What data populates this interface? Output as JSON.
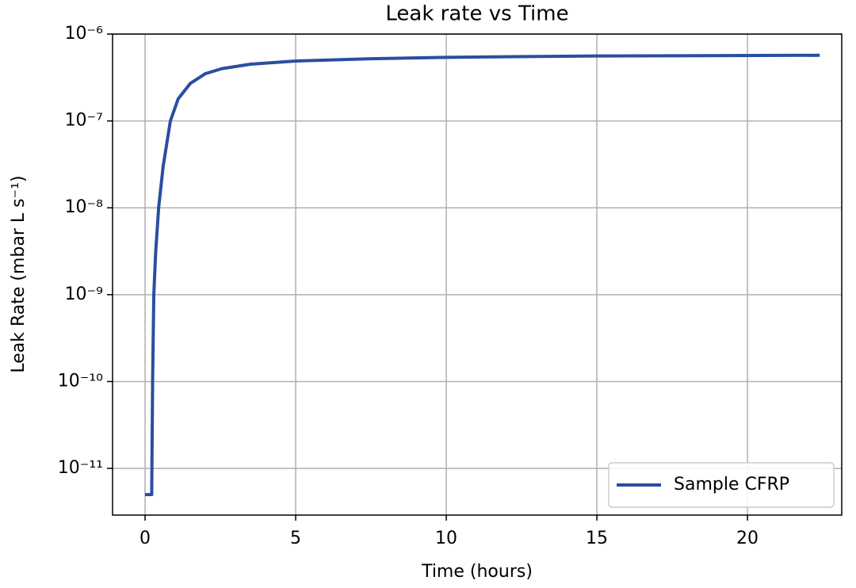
{
  "chart_data": {
    "type": "line",
    "title": "Leak rate vs Time",
    "x_label": "Time (hours)",
    "y_label": "Leak Rate (mbar L s⁻¹)",
    "log_y": true,
    "grid": true,
    "legend": "lower right",
    "xlim": [
      -1.08,
      23.13
    ],
    "ylim": [
      2.9e-12,
      1e-06
    ],
    "xticks": [
      0,
      5,
      10,
      15,
      20
    ],
    "yticks": [
      {
        "value": 1e-11,
        "label": "10⁻¹¹"
      },
      {
        "value": 1e-10,
        "label": "10⁻¹⁰"
      },
      {
        "value": 1e-09,
        "label": "10⁻⁹"
      },
      {
        "value": 1e-08,
        "label": "10⁻⁸"
      },
      {
        "value": 1e-07,
        "label": "10⁻⁷"
      },
      {
        "value": 1e-06,
        "label": "10⁻⁶"
      }
    ],
    "series": [
      {
        "name": "Sample CFRP",
        "color": "#2a4ea0",
        "x": [
          0,
          0.22,
          0.25,
          0.29,
          0.35,
          0.45,
          0.6,
          0.84,
          1.1,
          1.5,
          2.0,
          2.55,
          3.5,
          5,
          7.5,
          10,
          15,
          22.4
        ],
        "values": [
          5e-12,
          5e-12,
          1e-10,
          1e-09,
          3e-09,
          1e-08,
          3e-08,
          1e-07,
          1.8e-07,
          2.7e-07,
          3.5e-07,
          4e-07,
          4.5e-07,
          4.9e-07,
          5.2e-07,
          5.4e-07,
          5.6e-07,
          5.7e-07
        ]
      }
    ]
  }
}
